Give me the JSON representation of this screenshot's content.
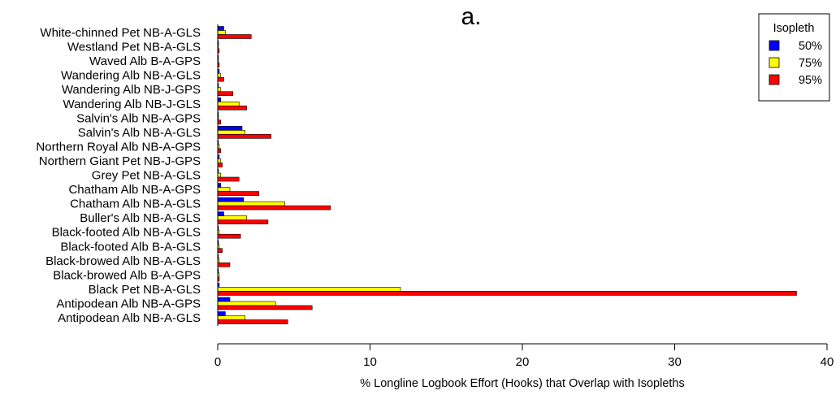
{
  "chart_data": {
    "type": "bar",
    "orientation": "horizontal",
    "title": "a.",
    "xlabel": "% Longline Logbook Effort (Hooks) that Overlap with Isopleths",
    "ylabel": "",
    "xlim": [
      0,
      40
    ],
    "xticks": [
      0,
      10,
      20,
      30,
      40
    ],
    "grid": false,
    "legend": {
      "title": "Isopleth",
      "placement": "top-right"
    },
    "categories": [
      "White-chinned Pet NB-A-GLS",
      "Westland Pet NB-A-GLS",
      "Waved Alb B-A-GPS",
      "Wandering Alb NB-A-GLS",
      "Wandering Alb NB-J-GPS",
      "Wandering Alb NB-J-GLS",
      "Salvin's Alb NB-A-GPS",
      "Salvin's Alb NB-A-GLS",
      "Northern Royal Alb NB-A-GPS",
      "Northern Giant Pet NB-J-GPS",
      "Grey Pet NB-A-GLS",
      "Chatham Alb NB-A-GPS",
      "Chatham Alb NB-A-GLS",
      "Buller's Alb NB-A-GLS",
      "Black-footed Alb NB-A-GLS",
      "Black-footed Alb B-A-GLS",
      "Black-browed Alb NB-A-GLS",
      "Black-browed Alb B-A-GPS",
      "Black Pet NB-A-GLS",
      "Antipodean Alb NB-A-GPS",
      "Antipodean Alb NB-A-GLS"
    ],
    "series": [
      {
        "name": "50%",
        "color": "#0000ff",
        "values": [
          0.4,
          0.05,
          0.05,
          0.1,
          0.05,
          0.2,
          0.05,
          1.6,
          0.05,
          0.1,
          0.05,
          0.2,
          1.7,
          0.4,
          0.05,
          0.05,
          0.05,
          0.05,
          0.1,
          0.8,
          0.5
        ]
      },
      {
        "name": "75%",
        "color": "#ffff00",
        "values": [
          0.5,
          0.05,
          0.05,
          0.2,
          0.2,
          1.4,
          0.05,
          1.8,
          0.1,
          0.2,
          0.2,
          0.8,
          4.4,
          1.9,
          0.1,
          0.1,
          0.1,
          0.1,
          12.0,
          3.8,
          1.8
        ]
      },
      {
        "name": "95%",
        "color": "#ff0000",
        "values": [
          2.2,
          0.1,
          0.1,
          0.4,
          1.0,
          1.9,
          0.2,
          3.5,
          0.2,
          0.3,
          1.4,
          2.7,
          7.4,
          3.3,
          1.5,
          0.3,
          0.8,
          0.1,
          38.0,
          6.2,
          4.6
        ]
      }
    ]
  }
}
